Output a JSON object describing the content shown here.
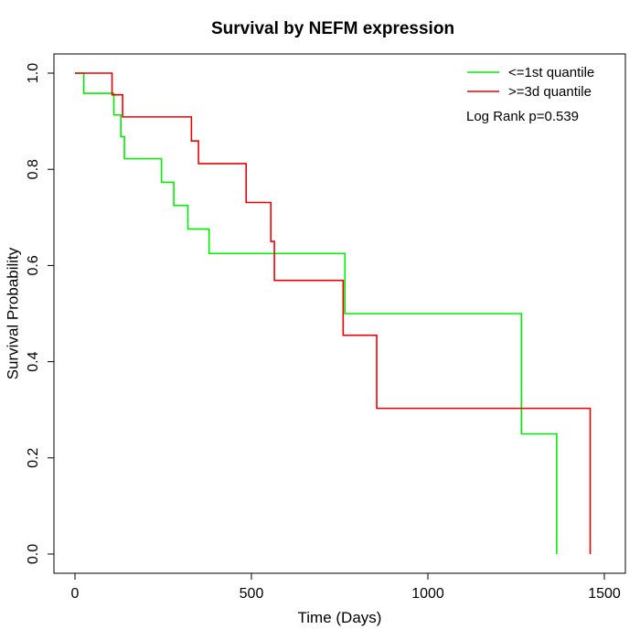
{
  "chart_data": {
    "type": "line",
    "step": true,
    "title": "Survival by NEFM expression",
    "xlabel": "Time (Days)",
    "ylabel": "Survival Probability",
    "xlim": [
      0,
      1500
    ],
    "ylim": [
      0,
      1
    ],
    "x_ticks": [
      0,
      500,
      1000,
      1500
    ],
    "y_ticks": [
      0.0,
      0.2,
      0.4,
      0.6,
      0.8,
      1.0
    ],
    "x_tick_labels": [
      "0",
      "500",
      "1000",
      "1500"
    ],
    "y_tick_labels": [
      "0.0",
      "0.2",
      "0.4",
      "0.6",
      "0.8",
      "1.0"
    ],
    "grid": false,
    "legend_position": "top-right",
    "annotation": "Log Rank p=0.539",
    "series": [
      {
        "name": "<=1st quantile",
        "color": "#00ee00",
        "x": [
          0,
          25,
          110,
          130,
          140,
          245,
          280,
          320,
          380,
          765,
          1265,
          1365
        ],
        "y": [
          1.0,
          0.958,
          0.913,
          0.868,
          0.822,
          0.773,
          0.725,
          0.676,
          0.625,
          0.5,
          0.25,
          0.0
        ]
      },
      {
        "name": ">=3d quantile",
        "color": "#ee0000",
        "x": [
          0,
          105,
          135,
          330,
          350,
          485,
          555,
          565,
          760,
          855,
          1460
        ],
        "y": [
          1.0,
          0.955,
          0.909,
          0.859,
          0.812,
          0.731,
          0.65,
          0.569,
          0.455,
          0.303,
          0.0
        ]
      }
    ]
  }
}
